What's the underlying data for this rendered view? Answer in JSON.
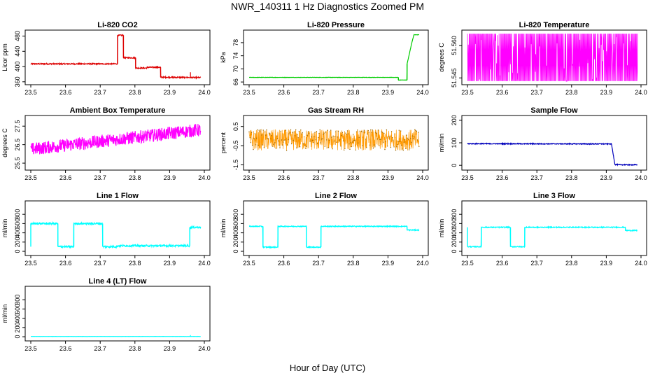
{
  "figure": {
    "title": "NWR_140311  1 Hz Diagnostics Zoomed PM",
    "xlabel": "Hour of Day (UTC)"
  },
  "colors": {
    "red": "#dd0000",
    "green": "#00cc00",
    "magenta": "#ff00ff",
    "orange": "#ff9900",
    "blue": "#0000bb",
    "cyan": "#00ffff",
    "axis": "#000000"
  },
  "chart_data": [
    {
      "id": "co2",
      "type": "line",
      "title": "Li-820 CO2",
      "ylabel": "Licor ppm",
      "xlim": [
        23.5,
        24.0
      ],
      "ylim": [
        356,
        492
      ],
      "yticks": [
        360,
        400,
        440,
        480
      ],
      "yticklabels": [
        "360",
        "400",
        "440",
        "480"
      ],
      "xticks": [
        23.5,
        23.6,
        23.7,
        23.8,
        23.9,
        24.0
      ],
      "xticklabels": [
        "23.5",
        "23.6",
        "23.7",
        "23.8",
        "23.9",
        "24.0"
      ],
      "color": "red",
      "noise": 1.5,
      "series": [
        {
          "name": "CO2",
          "x": [
            23.5,
            23.75,
            23.75,
            23.767,
            23.767,
            23.802,
            23.802,
            23.835,
            23.835,
            23.874,
            23.874,
            23.99
          ],
          "y": [
            407,
            407,
            482,
            482,
            423,
            423,
            396,
            396,
            398,
            398,
            372,
            371
          ]
        }
      ],
      "spikes": [
        {
          "x": 23.96,
          "y": 385
        }
      ]
    },
    {
      "id": "pressure",
      "type": "line",
      "title": "Li-820 Pressure",
      "ylabel": "kPa",
      "xlim": [
        23.5,
        24.0
      ],
      "ylim": [
        65.6,
        81.4
      ],
      "yticks": [
        66,
        70,
        74,
        78
      ],
      "yticklabels": [
        "66",
        "70",
        "74",
        "78"
      ],
      "xticks": [
        23.5,
        23.6,
        23.7,
        23.8,
        23.9,
        24.0
      ],
      "xticklabels": [
        "23.5",
        "23.6",
        "23.7",
        "23.8",
        "23.9",
        "24.0"
      ],
      "color": "green",
      "noise": 0.05,
      "series": [
        {
          "name": "Pressure",
          "x": [
            23.5,
            23.93,
            23.93,
            23.955,
            23.955,
            23.97,
            23.975,
            23.99
          ],
          "y": [
            67.4,
            67.4,
            66.6,
            66.6,
            71.5,
            78.5,
            80.4,
            80.4
          ]
        }
      ]
    },
    {
      "id": "temperature",
      "type": "line",
      "title": "Li-820 Temperature",
      "ylabel": "degrees C",
      "xlim": [
        23.5,
        24.0
      ],
      "ylim": [
        51.5425,
        51.5665
      ],
      "yticks": [
        51.545,
        51.56
      ],
      "yticklabels": [
        "51.545",
        "51.560"
      ],
      "xticks": [
        23.5,
        23.6,
        23.7,
        23.8,
        23.9,
        24.0
      ],
      "xticklabels": [
        "23.5",
        "23.6",
        "23.7",
        "23.8",
        "23.9",
        "24.0"
      ],
      "color": "magenta",
      "toggle": [
        51.5435,
        51.5655
      ],
      "toggle_end": 23.99
    },
    {
      "id": "ambient",
      "type": "line",
      "title": "Ambient Box Temperature",
      "ylabel": "degrees C",
      "xlim": [
        23.5,
        24.0
      ],
      "ylim": [
        25.2,
        28.0
      ],
      "yticks": [
        25.5,
        26.5,
        27.5
      ],
      "yticklabels": [
        "25.5",
        "26.5",
        "27.5"
      ],
      "xticks": [
        23.5,
        23.6,
        23.7,
        23.8,
        23.9,
        24.0
      ],
      "xticklabels": [
        "23.5",
        "23.6",
        "23.7",
        "23.8",
        "23.9",
        "24.0"
      ],
      "color": "magenta",
      "noise": 0.35,
      "series": [
        {
          "name": "Ambient",
          "x": [
            23.5,
            23.99
          ],
          "y": [
            26.25,
            27.3
          ]
        }
      ]
    },
    {
      "id": "rh",
      "type": "line",
      "title": "Gas Stream RH",
      "ylabel": "percent",
      "xlim": [
        23.5,
        24.0
      ],
      "ylim": [
        -1.7,
        1.0
      ],
      "yticks": [
        -1.5,
        -0.5,
        0.5
      ],
      "yticklabels": [
        "-1.5",
        "-0.5",
        "0.5"
      ],
      "xticks": [
        23.5,
        23.6,
        23.7,
        23.8,
        23.9,
        24.0
      ],
      "xticklabels": [
        "23.5",
        "23.6",
        "23.7",
        "23.8",
        "23.9",
        "24.0"
      ],
      "color": "orange",
      "noise": 0.55,
      "markers": true,
      "series": [
        {
          "name": "RH",
          "x": [
            23.5,
            23.99
          ],
          "y": [
            -0.2,
            -0.2
          ]
        }
      ]
    },
    {
      "id": "sample",
      "type": "line",
      "title": "Sample Flow",
      "ylabel": "ml/min",
      "xlim": [
        23.5,
        24.0
      ],
      "ylim": [
        -15,
        215
      ],
      "yticks": [
        0,
        100,
        200
      ],
      "yticklabels": [
        "0",
        "100",
        "200"
      ],
      "xticks": [
        23.5,
        23.6,
        23.7,
        23.8,
        23.9,
        24.0
      ],
      "xticklabels": [
        "23.5",
        "23.6",
        "23.7",
        "23.8",
        "23.9",
        "24.0"
      ],
      "color": "blue",
      "noise": 2,
      "series": [
        {
          "name": "Sample",
          "x": [
            23.5,
            23.915,
            23.925,
            23.99
          ],
          "y": [
            96,
            95,
            3,
            2
          ]
        }
      ]
    },
    {
      "id": "line1",
      "type": "line",
      "title": "Line 1 Flow",
      "ylabel": "ml/min",
      "xlim": [
        23.5,
        24.0
      ],
      "ylim": [
        -60,
        1060
      ],
      "yticks": [
        0,
        200,
        400,
        600,
        800
      ],
      "yticklabels": [
        "0",
        "200",
        "400",
        "600",
        "800"
      ],
      "xticks": [
        23.5,
        23.6,
        23.7,
        23.8,
        23.9,
        24.0
      ],
      "xticklabels": [
        "23.5",
        "23.6",
        "23.7",
        "23.8",
        "23.9",
        "24.0"
      ],
      "color": "cyan",
      "noise": 20,
      "series": [
        {
          "name": "Line 1",
          "x": [
            23.5,
            23.5,
            23.578,
            23.578,
            23.624,
            23.624,
            23.707,
            23.707,
            23.75,
            23.75,
            23.958,
            23.958,
            23.99
          ],
          "y": [
            100,
            600,
            600,
            100,
            100,
            600,
            600,
            100,
            100,
            120,
            120,
            520,
            520
          ]
        }
      ]
    },
    {
      "id": "line2",
      "type": "line",
      "title": "Line 2 Flow",
      "ylabel": "ml/min",
      "xlim": [
        23.5,
        24.0
      ],
      "ylim": [
        -60,
        1060
      ],
      "yticks": [
        0,
        200,
        400,
        600,
        800
      ],
      "yticklabels": [
        "0",
        "200",
        "400",
        "600",
        "800"
      ],
      "xticks": [
        23.5,
        23.6,
        23.7,
        23.8,
        23.9,
        24.0
      ],
      "xticklabels": [
        "23.5",
        "23.6",
        "23.7",
        "23.8",
        "23.9",
        "24.0"
      ],
      "color": "cyan",
      "noise": 10,
      "series": [
        {
          "name": "Line 2",
          "x": [
            23.5,
            23.54,
            23.54,
            23.583,
            23.583,
            23.665,
            23.665,
            23.707,
            23.707,
            23.955,
            23.955,
            23.99
          ],
          "y": [
            540,
            540,
            90,
            90,
            540,
            540,
            90,
            90,
            540,
            540,
            460,
            460
          ]
        }
      ]
    },
    {
      "id": "line3",
      "type": "line",
      "title": "Line 3 Flow",
      "ylabel": "ml/min",
      "xlim": [
        23.5,
        24.0
      ],
      "ylim": [
        -60,
        1060
      ],
      "yticks": [
        0,
        200,
        400,
        600,
        800
      ],
      "yticklabels": [
        "0",
        "200",
        "400",
        "600",
        "800"
      ],
      "xticks": [
        23.5,
        23.6,
        23.7,
        23.8,
        23.9,
        24.0
      ],
      "xticklabels": [
        "23.5",
        "23.6",
        "23.7",
        "23.8",
        "23.9",
        "24.0"
      ],
      "color": "cyan",
      "noise": 10,
      "series": [
        {
          "name": "Line 3",
          "x": [
            23.5,
            23.5,
            23.54,
            23.54,
            23.624,
            23.624,
            23.665,
            23.665,
            23.955,
            23.955,
            23.99
          ],
          "y": [
            520,
            100,
            100,
            520,
            520,
            100,
            100,
            520,
            520,
            450,
            450
          ]
        }
      ]
    },
    {
      "id": "line4",
      "type": "line",
      "title": "Line 4 (LT) Flow",
      "ylabel": "ml/min",
      "xlim": [
        23.5,
        24.0
      ],
      "ylim": [
        -60,
        1060
      ],
      "yticks": [
        0,
        200,
        400,
        600,
        800
      ],
      "yticklabels": [
        "0",
        "200",
        "400",
        "600",
        "800"
      ],
      "xticks": [
        23.5,
        23.6,
        23.7,
        23.8,
        23.9,
        24.0
      ],
      "xticklabels": [
        "23.5",
        "23.6",
        "23.7",
        "23.8",
        "23.9",
        "24.0"
      ],
      "color": "cyan",
      "noise": 1,
      "series": [
        {
          "name": "Line 4",
          "x": [
            23.5,
            23.99
          ],
          "y": [
            5,
            5
          ]
        }
      ],
      "spikes": [
        {
          "x": 23.96,
          "y": 35
        }
      ]
    }
  ]
}
